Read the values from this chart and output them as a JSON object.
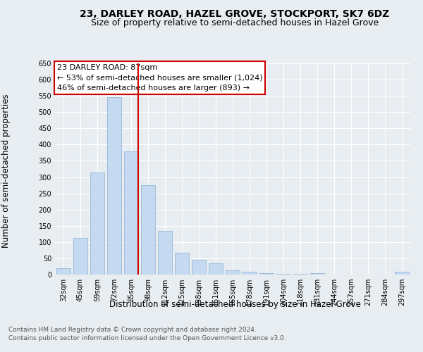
{
  "title": "23, DARLEY ROAD, HAZEL GROVE, STOCKPORT, SK7 6DZ",
  "subtitle": "Size of property relative to semi-detached houses in Hazel Grove",
  "xlabel": "Distribution of semi-detached houses by size in Hazel Grove",
  "ylabel": "Number of semi-detached properties",
  "footnote1": "Contains HM Land Registry data © Crown copyright and database right 2024.",
  "footnote2": "Contains public sector information licensed under the Open Government Licence v3.0.",
  "categories": [
    "32sqm",
    "45sqm",
    "59sqm",
    "72sqm",
    "85sqm",
    "98sqm",
    "112sqm",
    "125sqm",
    "138sqm",
    "151sqm",
    "165sqm",
    "178sqm",
    "191sqm",
    "204sqm",
    "218sqm",
    "231sqm",
    "244sqm",
    "257sqm",
    "271sqm",
    "284sqm",
    "297sqm"
  ],
  "values": [
    20,
    113,
    315,
    545,
    380,
    275,
    135,
    68,
    46,
    35,
    13,
    8,
    4,
    3,
    2,
    5,
    0,
    0,
    0,
    0,
    8
  ],
  "bar_color": "#c5d9f0",
  "bar_edge_color": "#8ab0d4",
  "highlight_index": 4,
  "highlight_line_color": "#cc0000",
  "annotation_box_color": "#ffffff",
  "annotation_box_edge": "#cc0000",
  "annotation_title": "23 DARLEY ROAD: 87sqm",
  "annotation_line1": "← 53% of semi-detached houses are smaller (1,024)",
  "annotation_line2": "46% of semi-detached houses are larger (893) →",
  "ylim": [
    0,
    650
  ],
  "yticks": [
    0,
    50,
    100,
    150,
    200,
    250,
    300,
    350,
    400,
    450,
    500,
    550,
    600,
    650
  ],
  "background_color": "#e8edf2",
  "plot_bg_color": "#e8edf2",
  "title_fontsize": 10,
  "subtitle_fontsize": 9,
  "axis_label_fontsize": 8.5,
  "tick_fontsize": 7,
  "annotation_fontsize": 8,
  "footnote_fontsize": 6.5
}
